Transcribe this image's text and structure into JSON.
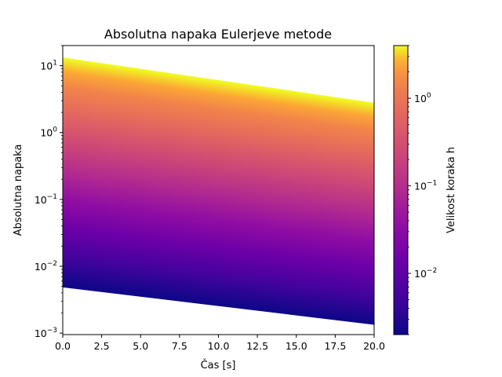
{
  "chart_data": {
    "type": "line",
    "title": "Absolutna napaka Eulerjeve metode",
    "xlabel": "Čas [s]",
    "ylabel": "Absolutna napaka",
    "xlim": [
      0,
      20
    ],
    "ylim": [
      0.00095,
      20
    ],
    "yscale": "log",
    "grid": false,
    "xticks": [
      0,
      2.5,
      5,
      7.5,
      10,
      12.5,
      15,
      17.5,
      20
    ],
    "xtick_labels": [
      "0.0",
      "2.5",
      "5.0",
      "7.5",
      "10.0",
      "12.5",
      "15.0",
      "17.5",
      "20.0"
    ],
    "yticks": [
      0.001,
      0.01,
      0.1,
      1,
      10
    ],
    "ytick_labels": [
      "10^-3",
      "10^-2",
      "10^-1",
      "10^0",
      "10^1"
    ],
    "series_count": 400,
    "series_model": "error(t) = e0 * exp(-decay * t), e0 from 0.005 to 13 (one curve per step size h, log-spaced), decay from 0.0645 to 0.078",
    "e0_range": [
      0.005,
      13
    ],
    "decay_range": [
      0.0645,
      0.078
    ],
    "colormap": "plasma",
    "colorbar": {
      "label": "Velikost koraka h",
      "scale": "log",
      "range": [
        0.002,
        4
      ],
      "ticks": [
        0.01,
        0.1,
        1
      ],
      "tick_labels": [
        "10^-2",
        "10^-1",
        "10^0"
      ]
    }
  }
}
